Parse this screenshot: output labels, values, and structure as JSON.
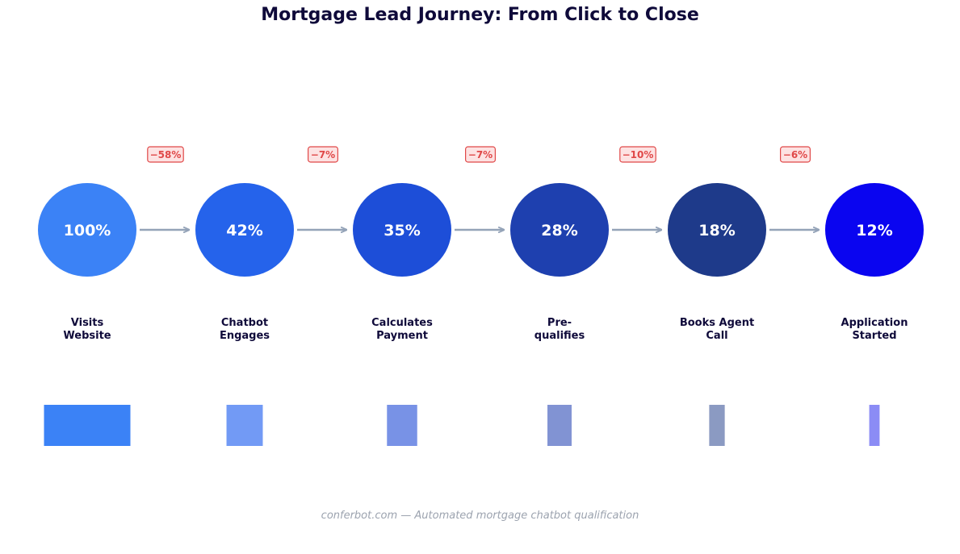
{
  "chart_data": {
    "type": "bar",
    "title": "Mortgage Lead Journey: From Click to Close",
    "caption": "conferbot.com — Automated mortgage chatbot qualification",
    "unit": "%",
    "stages": [
      {
        "line1": "Visits",
        "line2": "Website",
        "value": 100,
        "color": "#3b82f6",
        "bar_color": "#3b82f6"
      },
      {
        "line1": "Chatbot",
        "line2": "Engages",
        "value": 42,
        "color": "#2563eb",
        "bar_color": "#729af5"
      },
      {
        "line1": "Calculates",
        "line2": "Payment",
        "value": 35,
        "color": "#1d4ed8",
        "bar_color": "#7892e6"
      },
      {
        "line1": "Pre-",
        "line2": "qualifies",
        "value": 28,
        "color": "#1e40af",
        "bar_color": "#8193d3"
      },
      {
        "line1": "Books Agent",
        "line2": "Call",
        "value": 18,
        "color": "#1e3a8a",
        "bar_color": "#8b9ac2"
      },
      {
        "line1": "Application",
        "line2": "Started",
        "value": 12,
        "color": "#0a05f0",
        "bar_color": "#8b8cf5"
      }
    ],
    "drops": [
      "−58%",
      "−7%",
      "−7%",
      "−10%",
      "−6%"
    ],
    "colors": {
      "title": "#0f0a3a",
      "label": "#0f0a3a",
      "arrow": "#94a3b8",
      "drop_text": "#e04848",
      "drop_fill": "#fde2e2",
      "drop_border": "#e04848",
      "caption": "#9ca3af"
    }
  }
}
